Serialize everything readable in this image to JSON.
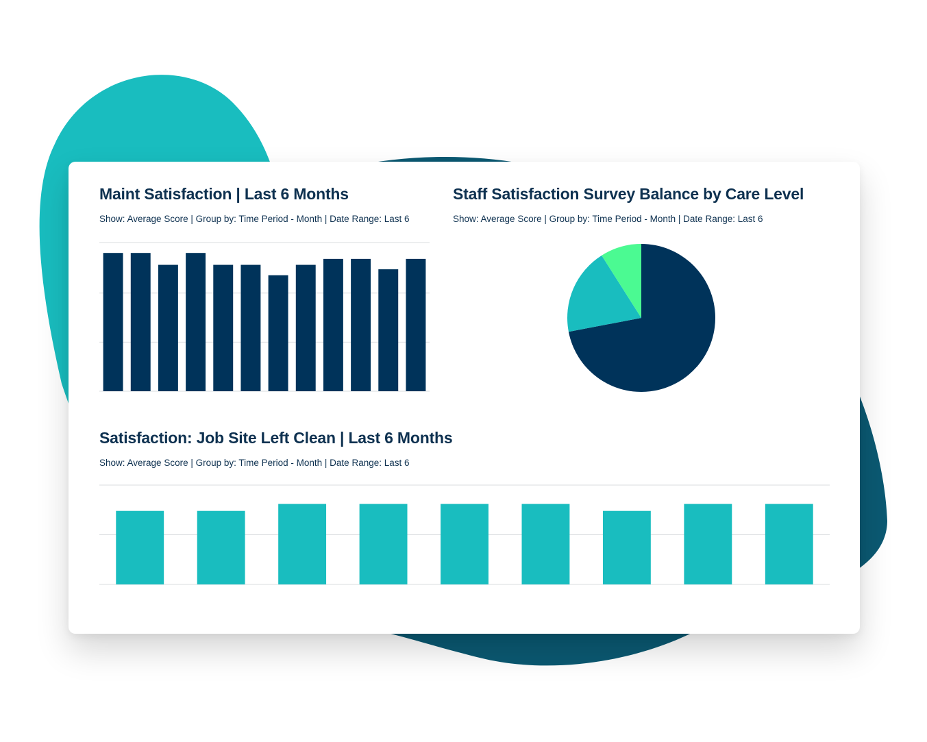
{
  "colors": {
    "navy": "#00335a",
    "teal": "#19bdbf",
    "mint": "#4bfa92",
    "deep_teal": "#0b5972",
    "grid": "#d9dcdf",
    "text": "#0e3150"
  },
  "panels": {
    "maint": {
      "title": "Maint Satisfaction | Last 6 Months",
      "subtitle": "Show: Average Score | Group by: Time Period - Month | Date Range: Last 6"
    },
    "staff": {
      "title": "Staff Satisfaction Survey Balance by Care Level",
      "subtitle": "Show: Average Score | Group by: Time Period - Month | Date Range: Last 6"
    },
    "clean": {
      "title": "Satisfaction: Job Site Left Clean | Last 6 Months",
      "subtitle": "Show: Average Score | Group by: Time Period - Month | Date Range: Last 6"
    }
  },
  "chart_data": [
    {
      "type": "bar",
      "title": "Maint Satisfaction | Last 6 Months",
      "values": [
        0.93,
        0.93,
        0.85,
        0.93,
        0.85,
        0.85,
        0.78,
        0.85,
        0.89,
        0.89,
        0.82,
        0.89
      ],
      "ylim": [
        0,
        1
      ],
      "grid": true,
      "color": "#00335a"
    },
    {
      "type": "pie",
      "title": "Staff Satisfaction Survey Balance by Care Level",
      "values": [
        72,
        19,
        9
      ],
      "colors": [
        "#00335a",
        "#19bdbf",
        "#4bfa92"
      ]
    },
    {
      "type": "bar",
      "title": "Satisfaction: Job Site Left Clean | Last 6 Months",
      "values": [
        0.74,
        0.74,
        0.81,
        0.81,
        0.81,
        0.81,
        0.74,
        0.81,
        0.81
      ],
      "ylim": [
        0,
        1
      ],
      "grid": true,
      "color": "#19bdbf"
    }
  ]
}
